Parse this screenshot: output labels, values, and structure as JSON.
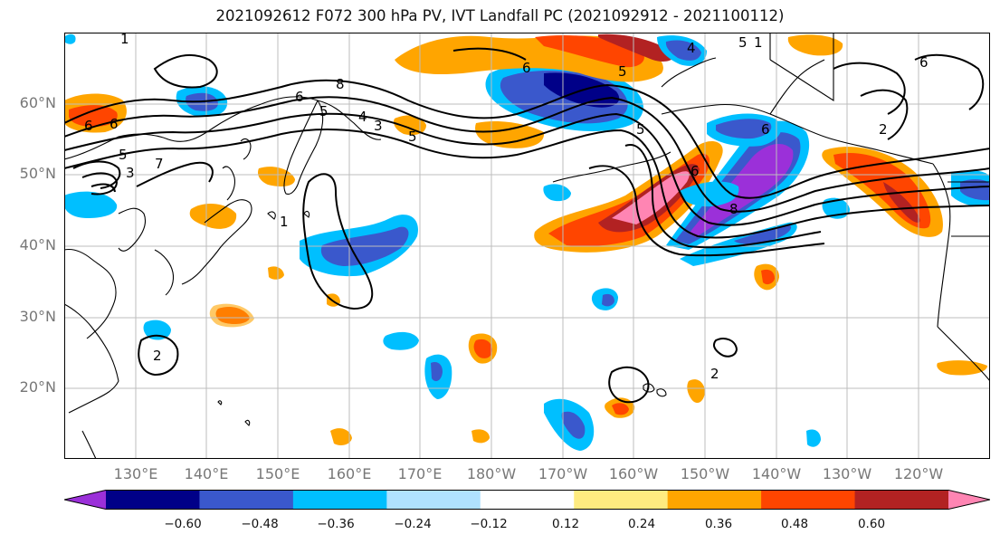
{
  "title": "2021092612 F072 300 hPa PV, IVT Landfall PC (2021092912 - 2021100112)",
  "map": {
    "lat_labels": [
      "60°N",
      "50°N",
      "40°N",
      "30°N",
      "20°N"
    ],
    "lon_labels": [
      "130°E",
      "140°E",
      "150°E",
      "160°E",
      "170°E",
      "180°W",
      "170°W",
      "160°W",
      "150°W",
      "140°W",
      "130°W",
      "120°W"
    ],
    "contour_labels": [
      "1",
      "6",
      "6",
      "5",
      "3",
      "7",
      "2",
      "8",
      "6",
      "5",
      "4",
      "3",
      "5",
      "6",
      "5",
      "5",
      "6",
      "8",
      "1",
      "2",
      "2",
      "6",
      "1",
      "6",
      "4",
      "5"
    ]
  },
  "colorbar": {
    "colors": [
      "#9b30d9",
      "#000088",
      "#3a58cc",
      "#00bfff",
      "#b0e2ff",
      "#ffffff",
      "#ffeb80",
      "#ffa500",
      "#ff4500",
      "#b22222",
      "#ff85b3"
    ],
    "ticks": [
      "−0.60",
      "−0.48",
      "−0.36",
      "−0.24",
      "−0.12",
      "0.12",
      "0.24",
      "0.36",
      "0.48",
      "0.60"
    ]
  }
}
